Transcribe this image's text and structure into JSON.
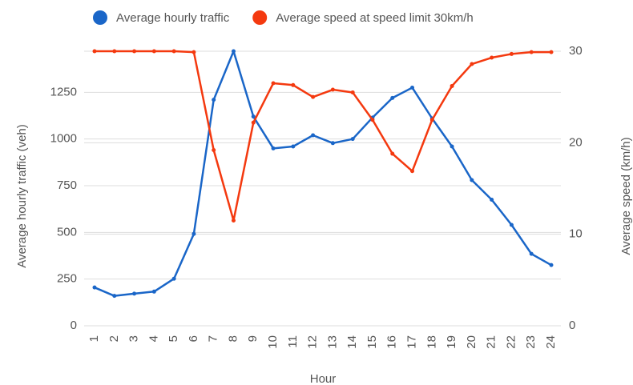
{
  "chart_data": {
    "type": "line",
    "x_label": "Hour",
    "y_label": "Average hourly traffic (veh)",
    "y2_label": "Average speed (km/h)",
    "categories": [
      "1",
      "2",
      "3",
      "4",
      "5",
      "6",
      "7",
      "8",
      "9",
      "10",
      "11",
      "12",
      "13",
      "14",
      "15",
      "16",
      "17",
      "18",
      "19",
      "20",
      "21",
      "22",
      "23",
      "24"
    ],
    "series": [
      {
        "name": "Average hourly traffic",
        "color": "#1a66c8",
        "values": [
          205,
          160,
          172,
          183,
          252,
          492,
          1210,
          1470,
          1120,
          950,
          960,
          1020,
          978,
          1000,
          1115,
          1220,
          1275,
          1110,
          960,
          780,
          675,
          540,
          385,
          325
        ]
      },
      {
        "name": "Average speed at speed limit 30km/h",
        "color": "#f4390f",
        "axis": "y2",
        "values": [
          30,
          30,
          30,
          30,
          30,
          29.9,
          19.2,
          11.5,
          22.2,
          26.5,
          26.3,
          25.0,
          25.8,
          25.5,
          22.5,
          18.8,
          16.9,
          22.5,
          26.2,
          28.6,
          29.3,
          29.7,
          29.9,
          29.9
        ]
      }
    ],
    "ylim": [
      0,
      1470
    ],
    "yticks": [
      0,
      250,
      500,
      750,
      1000,
      1250
    ],
    "y2lim": [
      0,
      30
    ],
    "y2ticks": [
      0,
      10,
      20,
      30
    ],
    "grid": true,
    "legend": "top"
  }
}
